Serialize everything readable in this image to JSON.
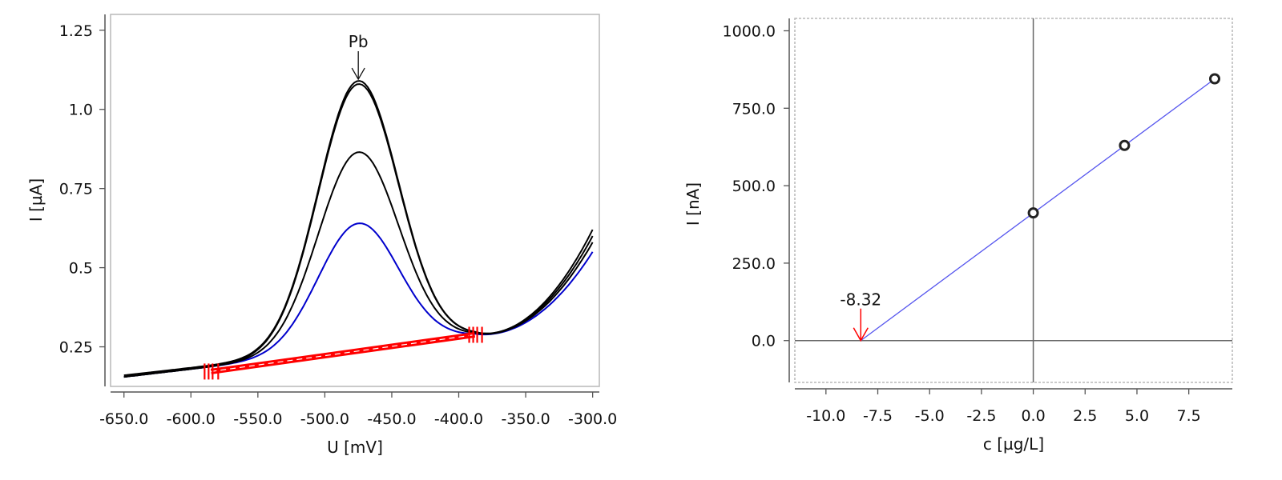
{
  "chart_data": [
    {
      "type": "line",
      "title": "",
      "xlabel": "U [mV]",
      "ylabel": "I [µA]",
      "xlim": [
        -660,
        -295
      ],
      "ylim": [
        0.125,
        1.3
      ],
      "x_ticks": [
        "-650.0",
        "-600.0",
        "-550.0",
        "-500.0",
        "-450.0",
        "-400.0",
        "-350.0",
        "-300.0"
      ],
      "y_ticks": [
        "0.25",
        "0.5",
        "0.75",
        "1.0",
        "1.25"
      ],
      "grid": false,
      "peak_label": "Pb",
      "peak_position": -475,
      "series": [
        {
          "color": "#0000cc",
          "peak_height": 0.64,
          "baseline_start": 0.155,
          "end_value": 0.55
        },
        {
          "color": "#000000",
          "peak_height": 0.865,
          "baseline_start": 0.155,
          "end_value": 0.58
        },
        {
          "color": "#000000",
          "peak_height": 1.08,
          "baseline_start": 0.155,
          "end_value": 0.6
        },
        {
          "color": "#000000",
          "peak_height": 1.09,
          "baseline_start": 0.16,
          "end_value": 0.62
        }
      ],
      "integration_baseline": {
        "color": "#ff0000",
        "start": [
          -585,
          0.172
        ],
        "end": [
          -388,
          0.288
        ]
      }
    },
    {
      "type": "scatter",
      "title": "",
      "xlabel": "c [µg/L]",
      "ylabel": "I [nA]",
      "xlim": [
        -11.5,
        9.6
      ],
      "ylim": [
        -135,
        1040
      ],
      "x_ticks": [
        "-10.0",
        "-7.5",
        "-5.0",
        "-2.5",
        "0.0",
        "2.5",
        "5.0",
        "7.5"
      ],
      "y_ticks": [
        "0.0",
        "250.0",
        "500.0",
        "750.0",
        "1000.0"
      ],
      "grid": false,
      "points": [
        {
          "x": 0.0,
          "y": 412
        },
        {
          "x": 4.4,
          "y": 630
        },
        {
          "x": 8.75,
          "y": 845
        }
      ],
      "fit_line": {
        "color": "#5555ee",
        "from_x": -8.32,
        "to_x": 8.75
      },
      "intercept_label": "-8.32",
      "intercept_x": -8.32,
      "intercept_color": "#ff0000"
    }
  ]
}
